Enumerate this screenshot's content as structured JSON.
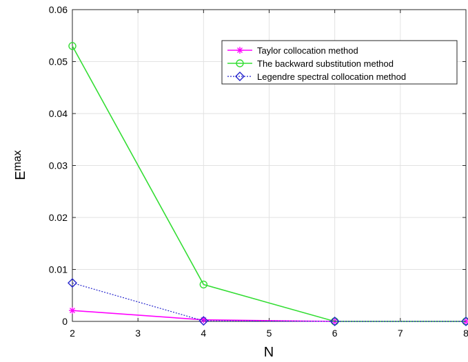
{
  "chart_data": {
    "type": "line",
    "xlabel": "N",
    "ylabel_main": "E",
    "ylabel_sub": "max",
    "xlim": [
      2,
      8
    ],
    "ylim": [
      0,
      0.06
    ],
    "xticks": [
      {
        "v": 2,
        "label": "2"
      },
      {
        "v": 3,
        "label": "3"
      },
      {
        "v": 4,
        "label": "4"
      },
      {
        "v": 5,
        "label": "5"
      },
      {
        "v": 6,
        "label": "6"
      },
      {
        "v": 7,
        "label": "7"
      },
      {
        "v": 8,
        "label": "8"
      }
    ],
    "yticks": [
      {
        "v": 0,
        "label": "0"
      },
      {
        "v": 0.01,
        "label": "0.01"
      },
      {
        "v": 0.02,
        "label": "0.02"
      },
      {
        "v": 0.03,
        "label": "0.03"
      },
      {
        "v": 0.04,
        "label": "0.04"
      },
      {
        "v": 0.05,
        "label": "0.05"
      },
      {
        "v": 0.06,
        "label": "0.06"
      }
    ],
    "grid": true,
    "legend_position": "top-right",
    "series": [
      {
        "name": "Taylor collocation method",
        "color": "#ff00ff",
        "marker": "star",
        "line_style": "solid",
        "x": [
          2,
          4,
          6,
          8
        ],
        "y": [
          0.0021,
          0.0003,
          0.0,
          0.0
        ]
      },
      {
        "name": "The backward substitution method",
        "color": "#33dd33",
        "marker": "circle",
        "line_style": "solid",
        "x": [
          2,
          4,
          6,
          8
        ],
        "y": [
          0.053,
          0.0071,
          0.0,
          0.0
        ]
      },
      {
        "name": "Legendre spectral collocation method",
        "color": "#2222cc",
        "marker": "diamond",
        "line_style": "dotted",
        "x": [
          2,
          4,
          6,
          8
        ],
        "y": [
          0.0074,
          0.0001,
          0.0,
          0.0
        ]
      }
    ]
  }
}
